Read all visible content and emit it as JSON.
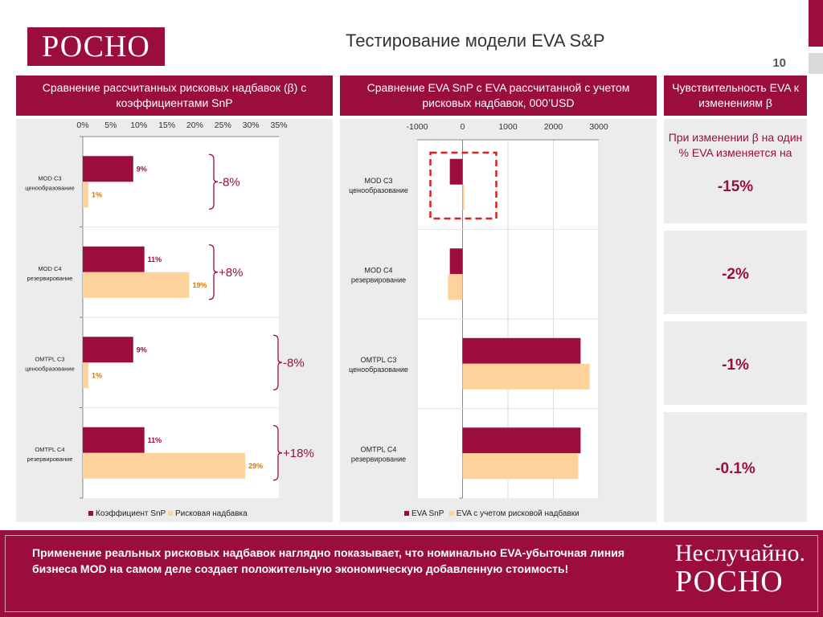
{
  "header": {
    "logo": "РОСНО",
    "title": "Тестирование модели EVA S&P",
    "page_number": "10"
  },
  "panels": {
    "left_title": "Сравнение рассчитанных рисковых надбавок (β) с коэффициентами SnP",
    "middle_title": "Сравнение EVA SnP с EVA рассчитанной с учетом рисковых надбавок, 000’USD",
    "right_title": "Чувствительность EVA к изменениям β"
  },
  "categories": [
    [
      "MOD C3",
      "ценообразование"
    ],
    [
      "MOD C4",
      "резервирование"
    ],
    [
      "OMTPL C3",
      "ценообразование"
    ],
    [
      "OMTPL C4",
      "резервирование"
    ]
  ],
  "braces": [
    "-8%",
    "+8%",
    "-8%",
    "+18%"
  ],
  "sensitivity": {
    "note": "При изменении β на один % EVA изменяется на",
    "values": [
      "-15%",
      "-2%",
      "-1%",
      "-0.1%"
    ]
  },
  "chart_data": [
    {
      "type": "bar",
      "orientation": "horizontal",
      "categories": [
        "MOD C3 ценообразование",
        "MOD C4 резервирование",
        "OMTPL C3 ценообразование",
        "OMTPL C4 резервирование"
      ],
      "series": [
        {
          "name": "Коэффициент SnP",
          "values": [
            9,
            11,
            9,
            11
          ],
          "labels": [
            "9%",
            "11%",
            "9%",
            "11%"
          ],
          "color": "#9b0e3b"
        },
        {
          "name": "Рисковая надбавка",
          "values": [
            1,
            19,
            1,
            29
          ],
          "labels": [
            "1%",
            "19%",
            "1%",
            "29%"
          ],
          "color": "#fdd39b"
        }
      ],
      "ticks": [
        "0%",
        "5%",
        "10%",
        "15%",
        "20%",
        "25%",
        "30%",
        "35%"
      ],
      "xlim": [
        0,
        35
      ],
      "legend": "bottom"
    },
    {
      "type": "bar",
      "orientation": "horizontal",
      "categories": [
        "MOD C3 ценообразование",
        "MOD C4 резервирование",
        "OMTPL C3 ценообразование",
        "OMTPL C4 резервирование"
      ],
      "series": [
        {
          "name": "EVA SnP",
          "values": [
            -280,
            -280,
            2600,
            2600
          ],
          "color": "#9b0e3b"
        },
        {
          "name": "EVA с учетом рисковой надбавки",
          "values": [
            40,
            -320,
            2800,
            2550
          ],
          "color": "#fdd39b"
        }
      ],
      "ticks": [
        "-1000",
        "0",
        "1000",
        "2000",
        "3000"
      ],
      "xlim": [
        -1000,
        3000
      ],
      "legend": "bottom",
      "annotation": "dashed red box around MOD C3"
    }
  ],
  "colors": {
    "brand": "#9b0e3b",
    "light_bar": "#fdd39b",
    "panel_bg": "#ececec",
    "highlight": "#e02020"
  },
  "footer": {
    "text": "Применение реальных рисковых надбавок наглядно показывает, что номинально EVA-убыточная линия бизнеса MOD на самом деле создает положительную экономическую добавленную стоимость!",
    "brand_line1": "Неслучайно.",
    "brand_line2": "РОСНО"
  }
}
